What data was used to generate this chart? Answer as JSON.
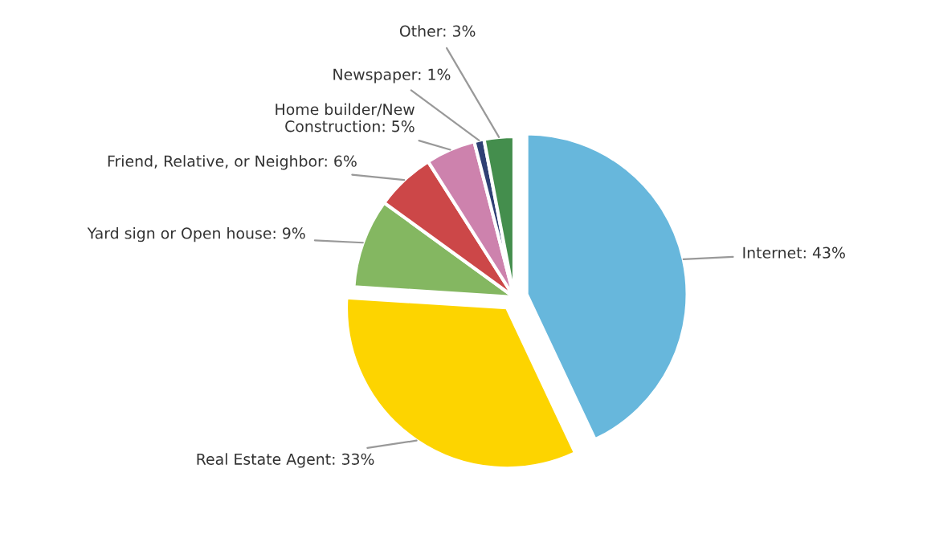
{
  "chart_data": {
    "type": "pie",
    "categories": [
      "Internet: 43%",
      "Real Estate Agent: 33%",
      "Yard sign or Open house: 9%",
      "Friend, Relative, or Neighbor: 6%",
      "Home builder/New\nConstruction: 5%",
      "Newspaper: 1%",
      "Other: 3%"
    ],
    "values": [
      43,
      33,
      9,
      6,
      5,
      1,
      3
    ],
    "colors": [
      "#67b7dc",
      "#fdd400",
      "#84b761",
      "#cc4748",
      "#cd82ad",
      "#2f4074",
      "#448e4d"
    ],
    "legend": false
  }
}
